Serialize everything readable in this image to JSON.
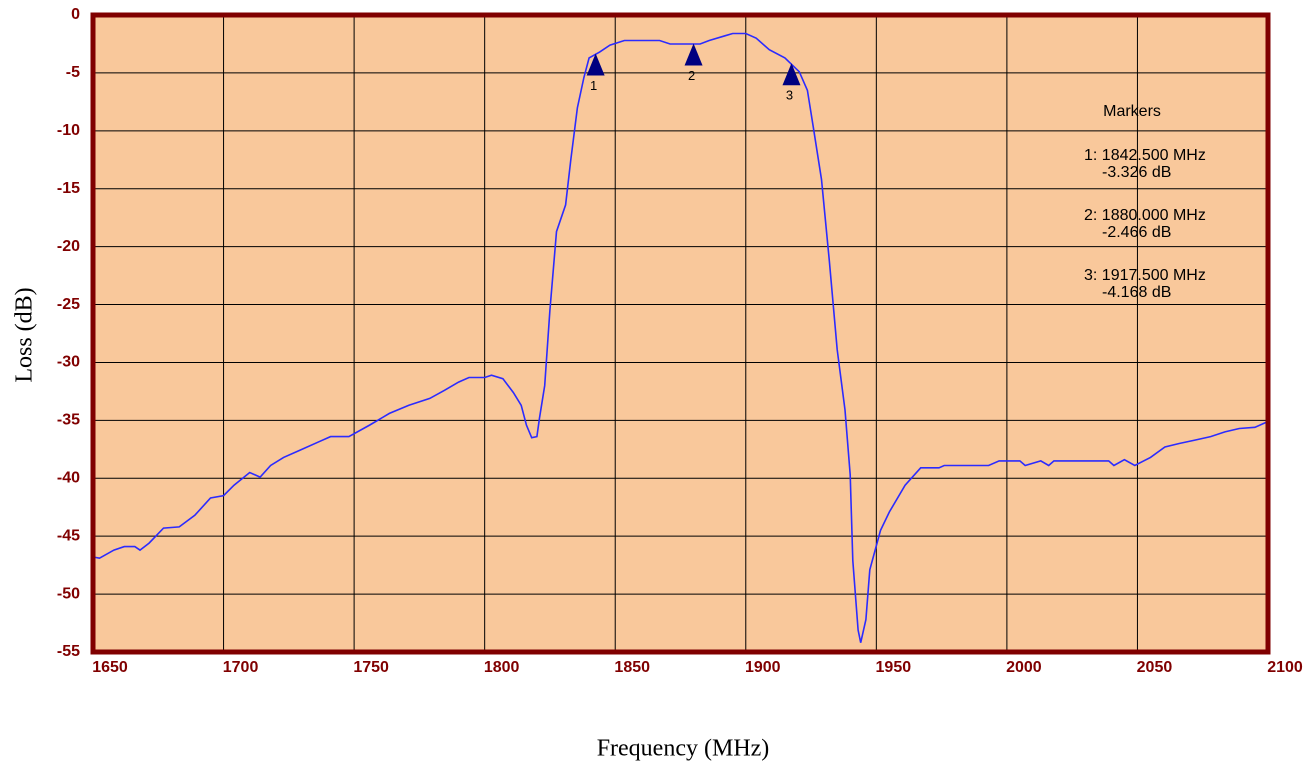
{
  "chart_data": {
    "type": "line",
    "x_label": "Frequency (MHz)",
    "y_label": "Loss (dB)",
    "xlim": [
      1650,
      2100
    ],
    "xticks": [
      1650,
      1700,
      1750,
      1800,
      1850,
      1900,
      1950,
      2000,
      2050,
      2100
    ],
    "ylim": [
      -55,
      0
    ],
    "yticks": [
      0,
      -5,
      -10,
      -15,
      -20,
      -25,
      -30,
      -35,
      -40,
      -45,
      -50,
      -55
    ],
    "grid": true,
    "background": "#f9c89b",
    "frame_color": "#800000",
    "series": [
      {
        "color": "#2b2bff",
        "x": [
          1650,
          1652.5,
          1658,
          1662,
          1666,
          1668,
          1671.5,
          1677,
          1683,
          1689,
          1695,
          1700,
          1704,
          1710,
          1714,
          1718,
          1723,
          1729,
          1737,
          1741,
          1748,
          1756,
          1763.5,
          1771,
          1779,
          1784.6,
          1790,
          1794,
          1800,
          1802.6,
          1807,
          1811,
          1814,
          1816,
          1818,
          1820,
          1821,
          1823,
          1825,
          1827.5,
          1831,
          1833,
          1835.5,
          1838,
          1840,
          1844,
          1848,
          1853.5,
          1867,
          1871,
          1882.5,
          1886,
          1892,
          1895,
          1900,
          1904,
          1909,
          1915,
          1920.5,
          1923.6,
          1926,
          1929,
          1932,
          1935,
          1938,
          1940,
          1941,
          1943,
          1944,
          1946,
          1947.5,
          1951.6,
          1955,
          1961,
          1967,
          1974,
          1976,
          1993,
          1997,
          2005,
          2007,
          2013,
          2016,
          2018,
          2039,
          2041,
          2045,
          2049,
          2055,
          2060.5,
          2066,
          2072,
          2078,
          2083.5,
          2089,
          2095,
          2100
        ],
        "values": [
          -46.8,
          -46.9,
          -46.2,
          -45.9,
          -45.9,
          -46.2,
          -45.6,
          -44.3,
          -44.2,
          -43.2,
          -41.7,
          -41.5,
          -40.6,
          -39.5,
          -39.9,
          -38.9,
          -38.2,
          -37.6,
          -36.8,
          -36.4,
          -36.4,
          -35.4,
          -34.4,
          -33.7,
          -33.1,
          -32.4,
          -31.7,
          -31.3,
          -31.3,
          -31.1,
          -31.4,
          -32.6,
          -33.7,
          -35.4,
          -36.5,
          -36.4,
          -34.8,
          -32,
          -25.5,
          -18.7,
          -16.4,
          -12.5,
          -8,
          -5.4,
          -3.7,
          -3.2,
          -2.6,
          -2.2,
          -2.2,
          -2.5,
          -2.5,
          -2.2,
          -1.8,
          -1.6,
          -1.6,
          -2,
          -3,
          -3.7,
          -4.9,
          -6.5,
          -9.9,
          -14.2,
          -21.2,
          -28.9,
          -34.1,
          -39.7,
          -47.1,
          -53.1,
          -54.2,
          -52.2,
          -47.9,
          -44.5,
          -42.9,
          -40.6,
          -39.1,
          -39.1,
          -38.9,
          -38.9,
          -38.5,
          -38.5,
          -38.9,
          -38.5,
          -38.9,
          -38.5,
          -38.5,
          -38.9,
          -38.4,
          -38.9,
          -38.2,
          -37.3,
          -37,
          -36.7,
          -36.4,
          -36,
          -35.7,
          -35.6,
          -35.1
        ]
      }
    ],
    "markers_title": "Markers",
    "marker_color": "#000080",
    "markers": [
      {
        "id": "1",
        "x": 1842.5,
        "y": -3.326,
        "freq_label": "1: 1842.500 MHz",
        "loss_label": "-3.326 dB"
      },
      {
        "id": "2",
        "x": 1880,
        "y": -2.466,
        "freq_label": "2: 1880.000 MHz",
        "loss_label": "-2.466 dB"
      },
      {
        "id": "3",
        "x": 1917.5,
        "y": -4.168,
        "freq_label": "3: 1917.500 MHz",
        "loss_label": "-4.168 dB"
      }
    ]
  }
}
